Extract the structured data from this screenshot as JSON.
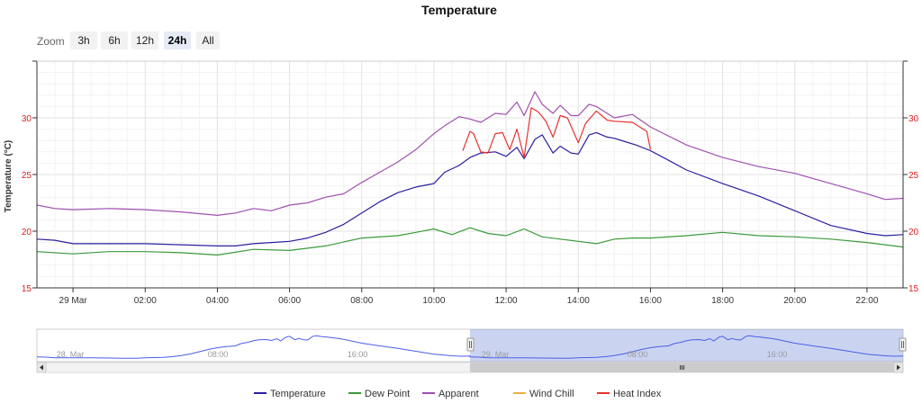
{
  "chart_data": {
    "type": "line",
    "title": "Temperature",
    "ylabel": "Temperature (°C)",
    "ylim": [
      15,
      35
    ],
    "yticks": [
      "15",
      "20",
      "25",
      "30"
    ],
    "xlim": [
      23.0,
      47.0
    ],
    "xticks": [
      {
        "x": 24,
        "label": "29 Mar"
      },
      {
        "x": 26,
        "label": "02:00"
      },
      {
        "x": 28,
        "label": "04:00"
      },
      {
        "x": 30,
        "label": "06:00"
      },
      {
        "x": 32,
        "label": "08:00"
      },
      {
        "x": 34,
        "label": "10:00"
      },
      {
        "x": 36,
        "label": "12:00"
      },
      {
        "x": 38,
        "label": "14:00"
      },
      {
        "x": 40,
        "label": "16:00"
      },
      {
        "x": 42,
        "label": "18:00"
      },
      {
        "x": 44,
        "label": "20:00"
      },
      {
        "x": 46,
        "label": "22:00"
      }
    ],
    "grid": true,
    "legend_position": "bottom",
    "series": [
      {
        "name": "Temperature",
        "color": "#2a1fa0",
        "x": [
          23.0,
          23.5,
          24,
          25,
          26,
          27,
          28,
          28.5,
          29,
          29.5,
          30,
          30.5,
          31,
          31.5,
          32,
          32.5,
          33,
          33.5,
          34,
          34.3,
          34.7,
          35,
          35.3,
          35.7,
          36,
          36.3,
          36.5,
          36.8,
          37,
          37.3,
          37.5,
          37.8,
          38,
          38.3,
          38.5,
          38.8,
          39,
          39.3,
          39.6,
          40,
          40.3,
          41,
          42,
          43,
          44,
          45,
          46,
          46.5,
          47.0
        ],
        "y": [
          19.3,
          19.2,
          18.9,
          18.9,
          18.9,
          18.8,
          18.7,
          18.7,
          18.9,
          19.0,
          19.1,
          19.4,
          19.9,
          20.6,
          21.6,
          22.6,
          23.4,
          23.9,
          24.2,
          25.2,
          25.8,
          26.5,
          26.9,
          27.0,
          26.6,
          27.4,
          26.4,
          28.1,
          28.5,
          26.9,
          27.5,
          26.9,
          26.8,
          28.5,
          28.7,
          28.3,
          28.2,
          27.9,
          27.6,
          27.1,
          26.6,
          25.4,
          24.2,
          23.1,
          21.8,
          20.5,
          19.8,
          19.6,
          19.7
        ]
      },
      {
        "name": "Dew Point",
        "color": "#3a9a3a",
        "x": [
          23.0,
          24,
          25,
          26,
          27,
          28,
          29,
          30,
          31,
          32,
          33,
          33.5,
          34,
          34.5,
          35,
          35.5,
          36,
          36.5,
          37,
          37.5,
          38,
          38.5,
          39,
          39.5,
          40,
          41,
          42,
          43,
          44,
          45,
          46,
          46.5,
          47.0
        ],
        "y": [
          18.2,
          18.0,
          18.2,
          18.2,
          18.1,
          17.9,
          18.4,
          18.3,
          18.7,
          19.4,
          19.6,
          19.9,
          20.2,
          19.7,
          20.3,
          19.8,
          19.6,
          20.2,
          19.5,
          19.3,
          19.1,
          18.9,
          19.3,
          19.4,
          19.4,
          19.6,
          19.9,
          19.6,
          19.5,
          19.3,
          19.0,
          18.8,
          18.6
        ]
      },
      {
        "name": "Apparent",
        "color": "#a050b0",
        "x": [
          23.0,
          23.5,
          24,
          25,
          26,
          27,
          28,
          28.5,
          29,
          29.5,
          30,
          30.5,
          31,
          31.5,
          32,
          32.5,
          33,
          33.5,
          34,
          34.3,
          34.7,
          35,
          35.3,
          35.7,
          36,
          36.3,
          36.5,
          36.8,
          37,
          37.3,
          37.5,
          37.8,
          38,
          38.3,
          38.5,
          38.8,
          39,
          39.5,
          40,
          41,
          42,
          43,
          44,
          45,
          46,
          46.5,
          47.0
        ],
        "y": [
          22.3,
          22.0,
          21.9,
          22.0,
          21.9,
          21.7,
          21.4,
          21.6,
          22.0,
          21.8,
          22.3,
          22.5,
          23.0,
          23.3,
          24.3,
          25.2,
          26.1,
          27.2,
          28.6,
          29.3,
          30.1,
          29.9,
          29.6,
          30.4,
          30.3,
          31.4,
          30.2,
          32.3,
          31.2,
          30.4,
          31.1,
          30.2,
          30.2,
          31.2,
          31.0,
          30.4,
          30.0,
          30.3,
          29.2,
          27.6,
          26.5,
          25.7,
          25.1,
          24.2,
          23.3,
          22.8,
          22.9
        ]
      },
      {
        "name": "Wind Chill",
        "color": "#f0b040",
        "x": [],
        "y": []
      },
      {
        "name": "Heat Index",
        "color": "#e83030",
        "x": [
          34.8,
          35.0,
          35.1,
          35.3,
          35.5,
          35.7,
          35.9,
          36.1,
          36.3,
          36.5,
          36.7,
          36.9,
          37.1,
          37.3,
          37.5,
          37.7,
          38.0,
          38.2,
          38.5,
          38.8,
          39.0,
          39.5,
          39.9,
          40.0
        ],
        "y": [
          27.1,
          28.8,
          28.6,
          27.0,
          26.9,
          28.6,
          28.7,
          27.2,
          29.0,
          26.5,
          30.9,
          30.5,
          29.7,
          28.3,
          30.2,
          30.0,
          27.8,
          29.5,
          30.6,
          29.8,
          29.7,
          29.6,
          28.8,
          27.2
        ]
      }
    ]
  },
  "zoom": {
    "label": "Zoom",
    "options": [
      "3h",
      "6h",
      "12h",
      "24h",
      "All"
    ],
    "selected": "24h"
  },
  "navigator": {
    "labels": [
      "28. Mar",
      "08:00",
      "16:00",
      "29. Mar",
      "08:00",
      "16:00"
    ],
    "selection": {
      "start_fraction": 0.5,
      "end_fraction": 1.0
    }
  }
}
